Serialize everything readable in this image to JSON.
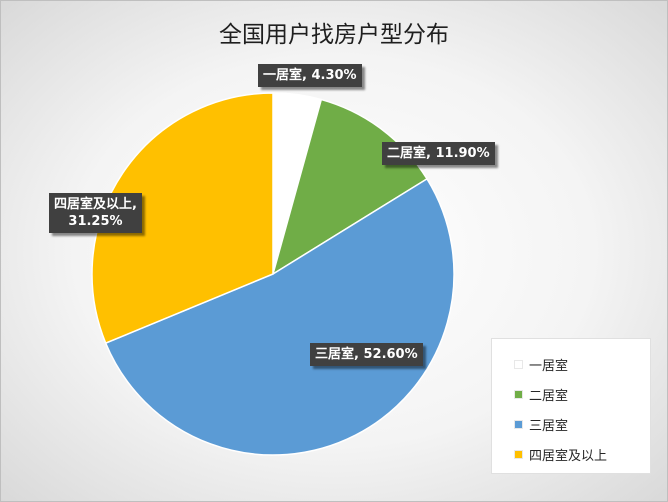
{
  "chart_data": {
    "type": "pie",
    "title": "全国用户找房户型分布",
    "categories": [
      "一居室",
      "二居室",
      "三居室",
      "四居室及以上"
    ],
    "values": [
      4.3,
      11.9,
      52.6,
      31.25
    ],
    "value_labels": [
      "4.30%",
      "11.90%",
      "52.60%",
      "31.25%"
    ],
    "colors": [
      "#ffffff",
      "#70ad47",
      "#5b9bd5",
      "#ffc000"
    ],
    "legend_position": "bottom-right",
    "start_angle": "12 o'clock, clockwise"
  }
}
